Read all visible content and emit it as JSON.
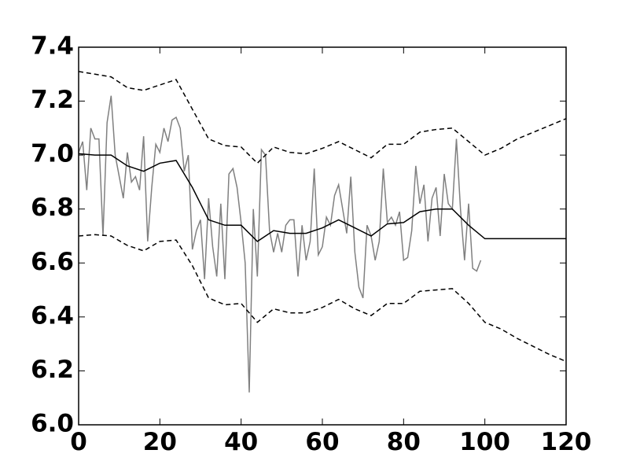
{
  "chart_data": {
    "type": "line",
    "xlim": [
      0,
      120
    ],
    "ylim": [
      6.0,
      7.4
    ],
    "xticks": [
      0,
      20,
      40,
      60,
      80,
      100,
      120
    ],
    "yticks": [
      {
        "value": 6.0,
        "label": "6.0"
      },
      6.2,
      6.4,
      6.6,
      6.8,
      {
        "value": 7.0,
        "label": "7.0"
      },
      7.2,
      7.4
    ],
    "series": [
      {
        "color": "#808080",
        "dash": "solid",
        "x": [
          0,
          1,
          2,
          3,
          4,
          5,
          6,
          7,
          8,
          9,
          10,
          11,
          12,
          13,
          14,
          15,
          16,
          17,
          18,
          19,
          20,
          21,
          22,
          23,
          24,
          25,
          26,
          27,
          28,
          29,
          30,
          31,
          32,
          33,
          34,
          35,
          36,
          37,
          38,
          39,
          40,
          41,
          42,
          43,
          44,
          45,
          46,
          47,
          48,
          49,
          50,
          51,
          52,
          53,
          54,
          55,
          56,
          57,
          58,
          59,
          60,
          61,
          62,
          63,
          64,
          65,
          66,
          67,
          68,
          69,
          70,
          71,
          72,
          73,
          74,
          75,
          76,
          77,
          78,
          79,
          80,
          81,
          82,
          83,
          84,
          85,
          86,
          87,
          88,
          89,
          90,
          91,
          92,
          93,
          94,
          95,
          96,
          97,
          98,
          99
        ],
        "values": [
          7.01,
          7.05,
          6.87,
          7.1,
          7.06,
          7.06,
          6.7,
          7.12,
          7.22,
          7.0,
          6.92,
          6.84,
          7.01,
          6.9,
          6.92,
          6.87,
          7.07,
          6.68,
          6.88,
          7.04,
          7.01,
          7.1,
          7.05,
          7.13,
          7.14,
          7.1,
          6.94,
          7.0,
          6.65,
          6.72,
          6.76,
          6.54,
          6.84,
          6.66,
          6.55,
          6.82,
          6.54,
          6.93,
          6.95,
          6.88,
          6.75,
          6.6,
          6.12,
          6.8,
          6.55,
          7.02,
          7.0,
          6.72,
          6.64,
          6.71,
          6.64,
          6.74,
          6.76,
          6.76,
          6.55,
          6.74,
          6.61,
          6.68,
          6.95,
          6.63,
          6.66,
          6.77,
          6.74,
          6.85,
          6.89,
          6.8,
          6.71,
          6.92,
          6.64,
          6.51,
          6.47,
          6.74,
          6.7,
          6.61,
          6.68,
          6.95,
          6.75,
          6.77,
          6.74,
          6.79,
          6.61,
          6.62,
          6.72,
          6.96,
          6.82,
          6.89,
          6.68,
          6.84,
          6.88,
          6.7,
          6.93,
          6.82,
          6.8,
          7.06,
          6.8,
          6.61,
          6.82,
          6.58,
          6.57,
          6.61
        ]
      },
      {
        "color": "#000000",
        "dash": "solid",
        "x": [
          0,
          4,
          8,
          12,
          16,
          20,
          24,
          28,
          32,
          36,
          40,
          44,
          48,
          52,
          56,
          60,
          64,
          68,
          72,
          76,
          80,
          84,
          88,
          92,
          96,
          100,
          104,
          108,
          112,
          116,
          120
        ],
        "values": [
          7.005,
          7.0,
          7.0,
          6.96,
          6.94,
          6.97,
          6.98,
          6.88,
          6.76,
          6.74,
          6.74,
          6.68,
          6.72,
          6.71,
          6.71,
          6.73,
          6.76,
          6.73,
          6.7,
          6.745,
          6.75,
          6.79,
          6.8,
          6.8,
          6.74,
          6.69,
          6.69,
          6.69,
          6.69,
          6.69,
          6.69
        ]
      },
      {
        "color": "#000000",
        "dash": "dashed",
        "x": [
          0,
          4,
          8,
          12,
          16,
          20,
          24,
          28,
          32,
          36,
          40,
          44,
          48,
          52,
          56,
          60,
          64,
          68,
          72,
          76,
          80,
          84,
          88,
          92,
          96,
          100,
          104,
          108,
          112,
          116,
          120
        ],
        "values": [
          7.31,
          7.3,
          7.29,
          7.25,
          7.24,
          7.26,
          7.28,
          7.17,
          7.06,
          7.035,
          7.03,
          6.97,
          7.03,
          7.01,
          7.005,
          7.025,
          7.05,
          7.02,
          6.99,
          7.04,
          7.04,
          7.085,
          7.095,
          7.1,
          7.05,
          7.0,
          7.025,
          7.06,
          7.085,
          7.11,
          7.135
        ]
      },
      {
        "color": "#000000",
        "dash": "dashed",
        "x": [
          0,
          4,
          8,
          12,
          16,
          20,
          24,
          28,
          32,
          36,
          40,
          44,
          48,
          52,
          56,
          60,
          64,
          68,
          72,
          76,
          80,
          84,
          88,
          92,
          96,
          100,
          104,
          108,
          112,
          116,
          120
        ],
        "values": [
          6.7,
          6.705,
          6.7,
          6.665,
          6.645,
          6.68,
          6.685,
          6.59,
          6.47,
          6.445,
          6.45,
          6.38,
          6.43,
          6.415,
          6.415,
          6.435,
          6.465,
          6.43,
          6.405,
          6.45,
          6.45,
          6.495,
          6.5,
          6.505,
          6.45,
          6.38,
          6.355,
          6.32,
          6.29,
          6.26,
          6.235
        ]
      }
    ]
  }
}
